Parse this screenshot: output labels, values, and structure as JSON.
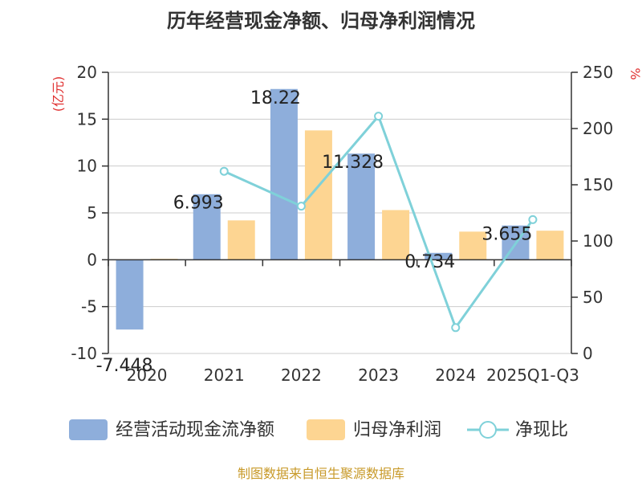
{
  "chart_data": {
    "type": "bar",
    "title": "历年经营现金净额、归母净利润情况",
    "y_left_unit": "(亿元)",
    "y_right_unit": "%",
    "categories": [
      "2020",
      "2021",
      "2022",
      "2023",
      "2024",
      "2025Q1-Q3"
    ],
    "y_left_ticks": [
      "20",
      "15",
      "10",
      "5",
      "0",
      "-5",
      "-10"
    ],
    "y_right_ticks": [
      "250",
      "200",
      "150",
      "100",
      "50",
      "0"
    ],
    "ylim": [
      -10,
      20
    ],
    "ylim_right": [
      0,
      250
    ],
    "grid": true,
    "legend_position": "bottom",
    "series": [
      {
        "name": "经营活动现金流净额",
        "type": "bar",
        "axis": "left",
        "color": "#8eaedb",
        "values": [
          -7.448,
          6.993,
          18.22,
          11.328,
          0.734,
          3.655
        ],
        "labels": [
          "-7.448",
          "6.993",
          "18.22",
          "11.328",
          "0.734",
          "3.655"
        ]
      },
      {
        "name": "归母净利润",
        "type": "bar",
        "axis": "left",
        "color": "#fdd592",
        "values": [
          0.1,
          4.2,
          13.8,
          5.3,
          3.0,
          3.1
        ]
      },
      {
        "name": "净现比",
        "type": "line",
        "axis": "right",
        "color": "#7fd1d9",
        "values": [
          null,
          162,
          131,
          211,
          23,
          119
        ]
      }
    ]
  },
  "footer": {
    "source": "制图数据来自恒生聚源数据库"
  }
}
